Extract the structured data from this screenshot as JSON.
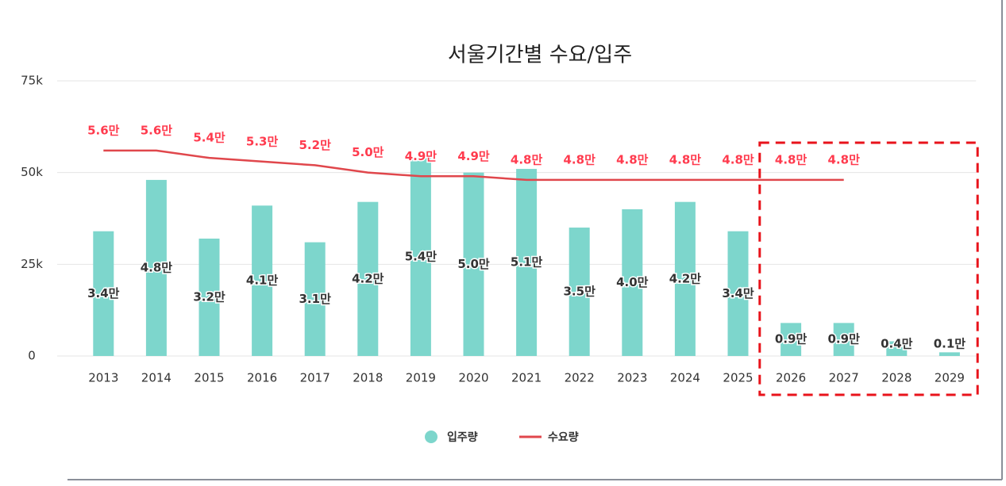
{
  "chart_data": {
    "type": "bar+line",
    "title": "서울기간별 수요/입주",
    "categories": [
      "2013",
      "2014",
      "2015",
      "2016",
      "2017",
      "2018",
      "2019",
      "2020",
      "2021",
      "2022",
      "2023",
      "2024",
      "2025",
      "2026",
      "2027",
      "2028",
      "2029"
    ],
    "series": [
      {
        "name": "입주량",
        "type": "bar",
        "color": "#7dd6cc",
        "values": [
          34000,
          48000,
          32000,
          41000,
          31000,
          42000,
          54000,
          50000,
          51000,
          35000,
          40000,
          42000,
          34000,
          9000,
          9000,
          4000,
          1000
        ],
        "value_labels": [
          "3.4만",
          "4.8만",
          "3.2만",
          "4.1만",
          "3.1만",
          "4.2만",
          "5.4만",
          "5.0만",
          "5.1만",
          "3.5만",
          "4.0만",
          "4.2만",
          "3.4만",
          "0.9만",
          "0.9만",
          "0.4만",
          "0.1만"
        ]
      },
      {
        "name": "수요량",
        "type": "line",
        "color": "#e0474c",
        "values": [
          56000,
          56000,
          54000,
          53000,
          52000,
          50000,
          49000,
          49000,
          48000,
          48000,
          48000,
          48000,
          48000,
          48000,
          48000,
          null,
          null
        ],
        "value_labels": [
          "5.6만",
          "5.6만",
          "5.4만",
          "5.3만",
          "5.2만",
          "5.0만",
          "4.9만",
          "4.9만",
          "4.8만",
          "4.8만",
          "4.8만",
          "4.8만",
          "4.8만",
          "4.8만",
          "4.8만",
          null,
          null
        ]
      }
    ],
    "ylim": [
      0,
      75000
    ],
    "yticks": [
      0,
      {
        "value": 25000,
        "label": "25k"
      },
      {
        "value": 50000,
        "label": "50k"
      },
      {
        "value": 75000,
        "label": "75k"
      }
    ],
    "grid": true,
    "legend": "bottom"
  }
}
